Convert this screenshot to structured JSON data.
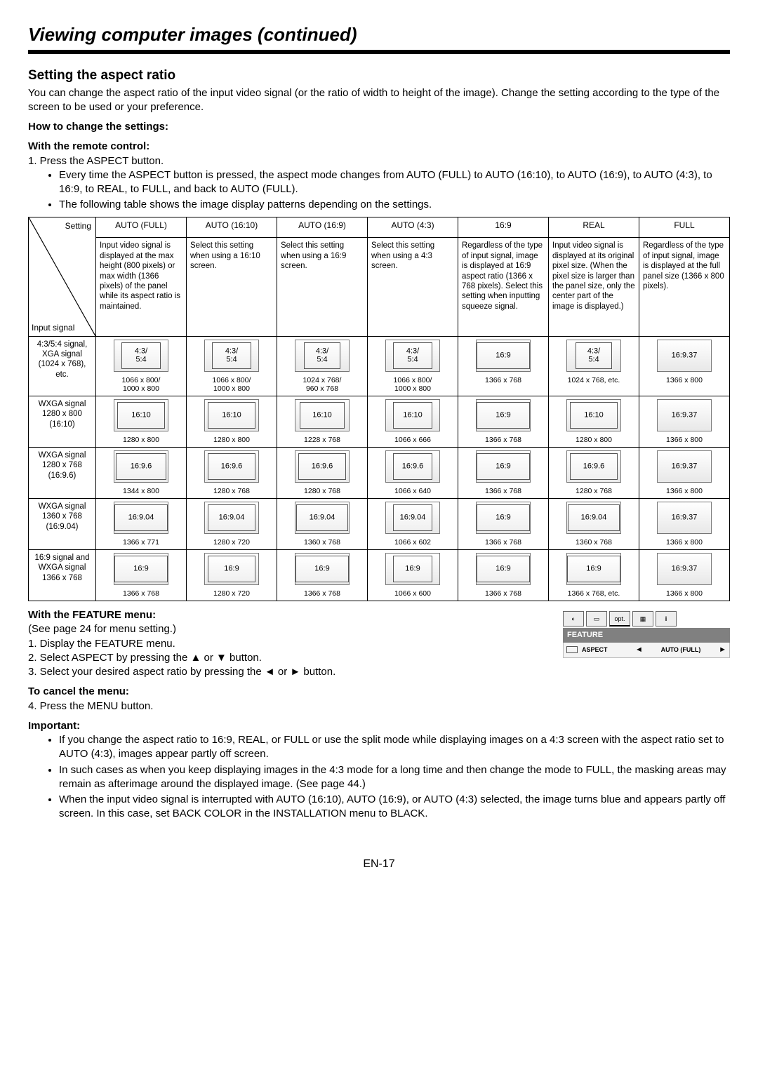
{
  "title": "Viewing computer images (continued)",
  "section": "Setting the aspect ratio",
  "intro": "You can change the aspect ratio of the input video signal (or the ratio of width to height of the image). Change the setting according to the type of the screen to be used or your preference.",
  "howto_heading": "How to change the settings:",
  "remote_heading": "With the remote control:",
  "remote_step1": "1.  Press the ASPECT button.",
  "remote_bullet1": "Every time the ASPECT button is pressed, the aspect mode changes from AUTO (FULL) to AUTO (16:10), to AUTO (16:9), to AUTO (4:3), to 16:9, to REAL, to FULL, and back to AUTO (FULL).",
  "remote_bullet2": "The following table shows the image display patterns depending on the settings.",
  "diag_top": "Setting",
  "diag_bot": "Input signal",
  "columns": [
    "AUTO (FULL)",
    "AUTO (16:10)",
    "AUTO (16:9)",
    "AUTO (4:3)",
    "16:9",
    "REAL",
    "FULL"
  ],
  "col_desc": [
    "Input video signal is displayed at the max height (800 pixels) or max width (1366 pixels) of the panel while its aspect ratio is maintained.",
    "Select this setting when using a 16:10 screen.",
    "Select this setting when using a 16:9 screen.",
    "Select this setting when using a 4:3 screen.",
    "Regardless of the type of input signal, image is displayed at 16:9 aspect ratio (1366 x 768 pixels). Select this setting when inputting squeeze signal.",
    "Input video signal is displayed at its original pixel size. (When the pixel size is larger than the panel size, only the center part of the image is displayed.)",
    "Regardless of the type of input signal, image is displayed at the full panel size (1366 x 800 pixels)."
  ],
  "rows": [
    {
      "label": "4:3/5:4 signal, XGA signal (1024 x 768), etc.",
      "cells": [
        {
          "ratio": "4:3/\n5:4",
          "res": "1066 x 800/\n1000 x 800",
          "l": 10,
          "r": 10
        },
        {
          "ratio": "4:3/\n5:4",
          "res": "1066 x 800/\n1000 x 800",
          "l": 10,
          "r": 10
        },
        {
          "ratio": "4:3/\n5:4",
          "res": "1024 x 768/\n960 x 768",
          "l": 12,
          "r": 12
        },
        {
          "ratio": "4:3/\n5:4",
          "res": "1066 x 800/\n1000 x 800",
          "l": 10,
          "r": 10
        },
        {
          "ratio": "16:9",
          "res": "1366 x 768",
          "l": 0,
          "r": 0,
          "tall": false
        },
        {
          "ratio": "4:3/\n5:4",
          "res": "1024 x 768, etc.",
          "l": 12,
          "r": 12
        },
        {
          "ratio": "16:9.37",
          "res": "1366 x 800",
          "l": 0,
          "r": 0,
          "nobox": true
        }
      ]
    },
    {
      "label": "WXGA signal 1280 x 800 (16:10)",
      "cells": [
        {
          "ratio": "16:10",
          "res": "1280 x 800",
          "l": 4,
          "r": 4
        },
        {
          "ratio": "16:10",
          "res": "1280 x 800",
          "l": 4,
          "r": 4
        },
        {
          "ratio": "16:10",
          "res": "1228 x 768",
          "l": 6,
          "r": 6
        },
        {
          "ratio": "16:10",
          "res": "1066 x 666",
          "l": 10,
          "r": 10
        },
        {
          "ratio": "16:9",
          "res": "1366 x 768",
          "l": 0,
          "r": 0
        },
        {
          "ratio": "16:10",
          "res": "1280 x 800",
          "l": 4,
          "r": 4
        },
        {
          "ratio": "16:9.37",
          "res": "1366 x 800",
          "l": 0,
          "r": 0,
          "nobox": true
        }
      ]
    },
    {
      "label": "WXGA signal 1280 x 768 (16:9.6)",
      "cells": [
        {
          "ratio": "16:9.6",
          "res": "1344 x 800",
          "l": 2,
          "r": 2
        },
        {
          "ratio": "16:9.6",
          "res": "1280 x 768",
          "l": 4,
          "r": 4
        },
        {
          "ratio": "16:9.6",
          "res": "1280 x 768",
          "l": 4,
          "r": 4
        },
        {
          "ratio": "16:9.6",
          "res": "1066 x 640",
          "l": 10,
          "r": 10
        },
        {
          "ratio": "16:9",
          "res": "1366 x 768",
          "l": 0,
          "r": 0
        },
        {
          "ratio": "16:9.6",
          "res": "1280 x 768",
          "l": 4,
          "r": 4
        },
        {
          "ratio": "16:9.37",
          "res": "1366 x 800",
          "l": 0,
          "r": 0,
          "nobox": true
        }
      ]
    },
    {
      "label": "WXGA signal 1360 x 768 (16:9.04)",
      "cells": [
        {
          "ratio": "16:9.04",
          "res": "1366 x 771",
          "l": 0,
          "r": 0
        },
        {
          "ratio": "16:9.04",
          "res": "1280 x 720",
          "l": 4,
          "r": 4
        },
        {
          "ratio": "16:9.04",
          "res": "1360 x 768",
          "l": 1,
          "r": 1
        },
        {
          "ratio": "16:9.04",
          "res": "1066 x 602",
          "l": 10,
          "r": 10
        },
        {
          "ratio": "16:9",
          "res": "1366 x 768",
          "l": 0,
          "r": 0
        },
        {
          "ratio": "16:9.04",
          "res": "1360 x 768",
          "l": 1,
          "r": 1
        },
        {
          "ratio": "16:9.37",
          "res": "1366 x 800",
          "l": 0,
          "r": 0,
          "nobox": true
        }
      ]
    },
    {
      "label": "16:9 signal and WXGA signal 1366 x 768",
      "cells": [
        {
          "ratio": "16:9",
          "res": "1366 x 768",
          "l": 0,
          "r": 0
        },
        {
          "ratio": "16:9",
          "res": "1280 x 720",
          "l": 4,
          "r": 4
        },
        {
          "ratio": "16:9",
          "res": "1366 x 768",
          "l": 0,
          "r": 0
        },
        {
          "ratio": "16:9",
          "res": "1066 x 600",
          "l": 10,
          "r": 10
        },
        {
          "ratio": "16:9",
          "res": "1366 x 768",
          "l": 0,
          "r": 0
        },
        {
          "ratio": "16:9",
          "res": "1366 x 768, etc.",
          "l": 0,
          "r": 0
        },
        {
          "ratio": "16:9.37",
          "res": "1366 x 800",
          "l": 0,
          "r": 0,
          "nobox": true
        }
      ]
    }
  ],
  "feature_heading": "With the FEATURE menu:",
  "feature_see": "(See page 24 for menu setting.)",
  "feature_steps": [
    "1.  Display the FEATURE menu.",
    "2.  Select ASPECT by pressing the ▲ or ▼ button.",
    "3.  Select your desired aspect ratio by pressing the ◄ or ► button."
  ],
  "cancel_heading": "To cancel the menu:",
  "cancel_step": "4.  Press the MENU button.",
  "important_heading": "Important:",
  "important": [
    "If you change the aspect ratio to 16:9, REAL, or FULL or use the split mode while displaying images on a 4:3 screen with the aspect ratio set to AUTO (4:3), images appear partly off screen.",
    "In such cases as when you keep displaying images in the 4:3 mode for a long time and then change the mode to FULL, the masking areas may remain as afterimage around the displayed image. (See page 44.)",
    "When the input video signal is interrupted with AUTO (16:10), AUTO (16:9), or AUTO (4:3) selected, the image turns blue and appears partly off screen. In this case, set BACK COLOR in the INSTALLATION menu to BLACK."
  ],
  "menu": {
    "title": "FEATURE",
    "item": "ASPECT",
    "value": "AUTO (FULL)",
    "tab_opt": "opt.",
    "tab_info": "i"
  },
  "page": "EN-17"
}
